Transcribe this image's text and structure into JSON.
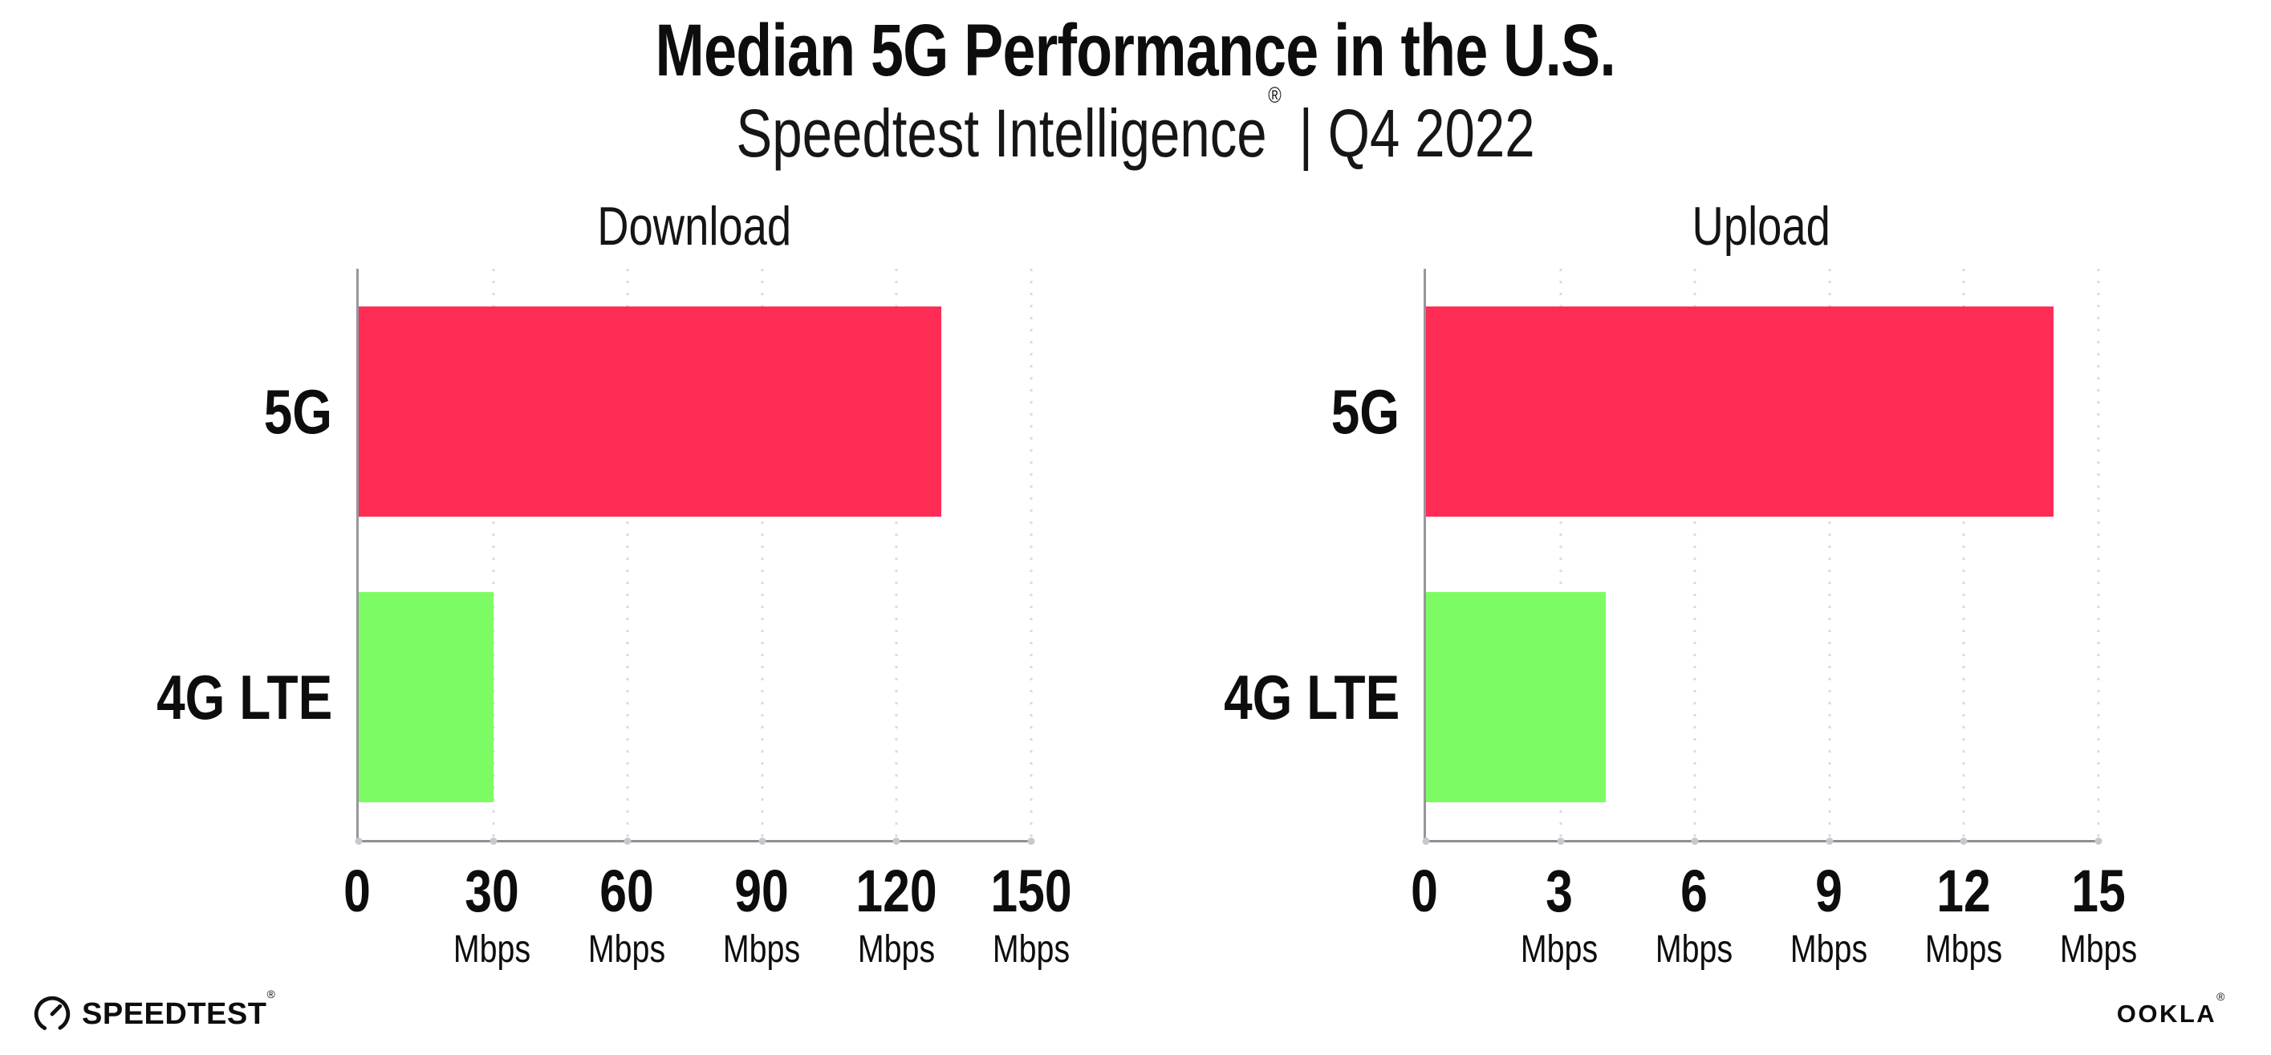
{
  "header": {
    "title": "Median 5G Performance in the U.S.",
    "subtitle_brand": "Speedtest Intelligence",
    "subtitle_reg": "®",
    "subtitle_rest": " | Q4 2022"
  },
  "footer": {
    "speedtest_label": "SPEEDTEST",
    "speedtest_reg": "®",
    "ookla_label": "OOKLA",
    "ookla_reg": "®"
  },
  "colors": {
    "bar_5g": "#FF2D55",
    "bar_4g_lte": "#7DFB64",
    "axis": "#8e8e93",
    "gridline": "#dadae2",
    "tick_dot": "#c7c7cd",
    "text": "#0d0d0d",
    "background": "#ffffff"
  },
  "chart_data": [
    {
      "type": "bar",
      "orientation": "horizontal",
      "title": "Download",
      "categories": [
        "5G",
        "4G LTE"
      ],
      "values": [
        130,
        30
      ],
      "unit": "Mbps",
      "xlim": [
        0,
        150
      ],
      "xticks": [
        0,
        30,
        60,
        90,
        120,
        150
      ],
      "bar_colors": [
        "#FF2D55",
        "#7DFB64"
      ],
      "grid": true,
      "legend": "none"
    },
    {
      "type": "bar",
      "orientation": "horizontal",
      "title": "Upload",
      "categories": [
        "5G",
        "4G LTE"
      ],
      "values": [
        14,
        4
      ],
      "unit": "Mbps",
      "xlim": [
        0,
        15
      ],
      "xticks": [
        0,
        3,
        6,
        9,
        12,
        15
      ],
      "bar_colors": [
        "#FF2D55",
        "#7DFB64"
      ],
      "grid": true,
      "legend": "none"
    }
  ]
}
